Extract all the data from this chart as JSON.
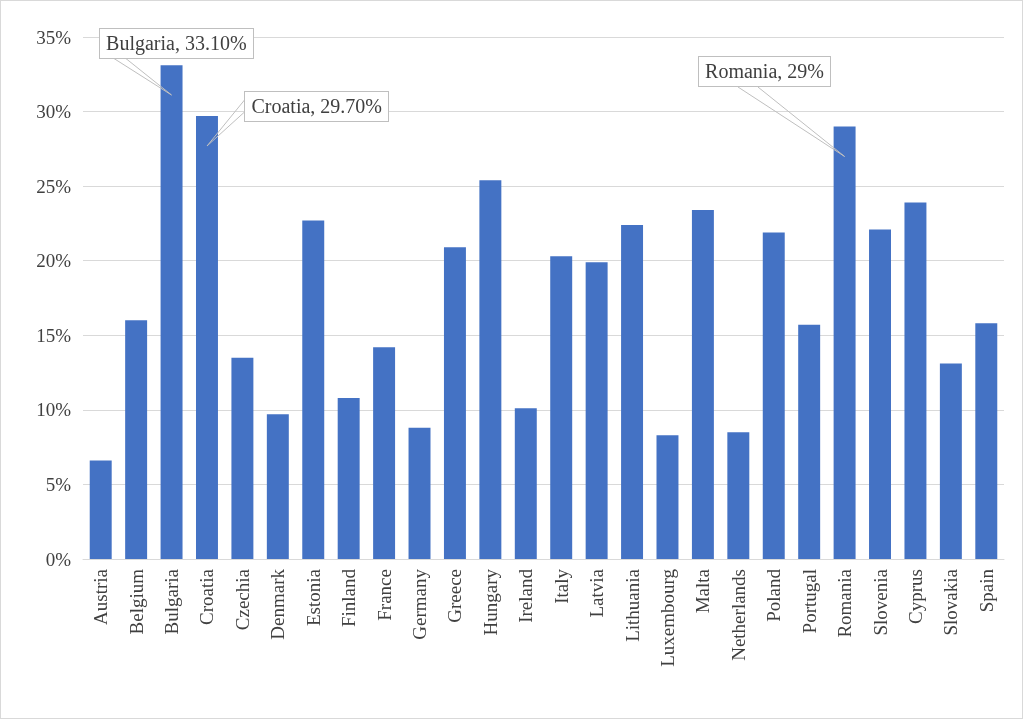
{
  "chart_data": {
    "type": "bar",
    "categories": [
      "Austria",
      "Belgium",
      "Bulgaria",
      "Croatia",
      "Czechia",
      "Denmark",
      "Estonia",
      "Finland",
      "France",
      "Germany",
      "Greece",
      "Hungary",
      "Ireland",
      "Italy",
      "Latvia",
      "Lithuania",
      "Luxembourg",
      "Malta",
      "Netherlands",
      "Poland",
      "Portugal",
      "Romania",
      "Slovenia",
      "Cyprus",
      "Slovakia",
      "Spain"
    ],
    "values": [
      6.6,
      16.0,
      33.1,
      29.7,
      13.5,
      9.7,
      22.7,
      10.8,
      14.2,
      8.8,
      20.9,
      25.4,
      10.1,
      20.3,
      19.9,
      22.4,
      8.3,
      23.4,
      8.5,
      21.9,
      15.7,
      29,
      22.1,
      23.9,
      13.1,
      15.8
    ],
    "color": "#4472c4",
    "ylim": [
      0,
      35
    ],
    "yticks": [
      {
        "value": 0,
        "label": "0%"
      },
      {
        "value": 5,
        "label": "5%"
      },
      {
        "value": 10,
        "label": "10%"
      },
      {
        "value": 15,
        "label": "15%"
      },
      {
        "value": 20,
        "label": "20%"
      },
      {
        "value": 25,
        "label": "25%"
      },
      {
        "value": 30,
        "label": "30%"
      },
      {
        "value": 35,
        "label": "35%"
      }
    ],
    "grid": "y",
    "annotations": [
      {
        "text": "Bulgaria, 33.10%",
        "x": "Bulgaria",
        "y": 33.1
      },
      {
        "text": "Croatia, 29.70%",
        "x": "Croatia",
        "y": 29.7
      },
      {
        "text": "Romania, 29%",
        "x": "Romania",
        "y": 29
      }
    ]
  }
}
